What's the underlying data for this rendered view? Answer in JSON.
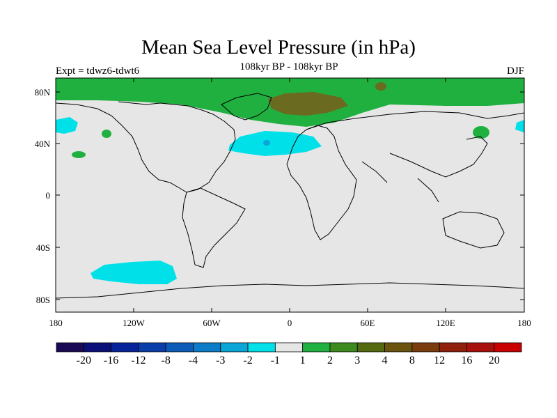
{
  "title": "Mean Sea Level Pressure (in hPa)",
  "subtitle": "108kyr BP - 108kyr BP",
  "experiment": "Expt = tdwz6-tdwt6",
  "season": "DJF",
  "map": {
    "lat_ticks": [
      "80N",
      "40N",
      "0",
      "40S",
      "80S"
    ],
    "lon_ticks": [
      "180",
      "120W",
      "60W",
      "0",
      "60E",
      "120E",
      "180"
    ],
    "background_color": "#e6e6e6"
  },
  "colorbar": {
    "colors": [
      "#1a0a55",
      "#0b0f78",
      "#07239a",
      "#0a3ea8",
      "#0c5cb8",
      "#0c7cc8",
      "#0ba5d8",
      "#00e0e8",
      "#e6e6e6",
      "#20b040",
      "#3d8a1e",
      "#556a10",
      "#6a5410",
      "#7a3c0c",
      "#8e200c",
      "#a8100c",
      "#c80000"
    ],
    "labels": [
      "-20",
      "-16",
      "-12",
      "-8",
      "-4",
      "-3",
      "-2",
      "-1",
      "1",
      "2",
      "3",
      "4",
      "8",
      "12",
      "16",
      "20"
    ]
  }
}
